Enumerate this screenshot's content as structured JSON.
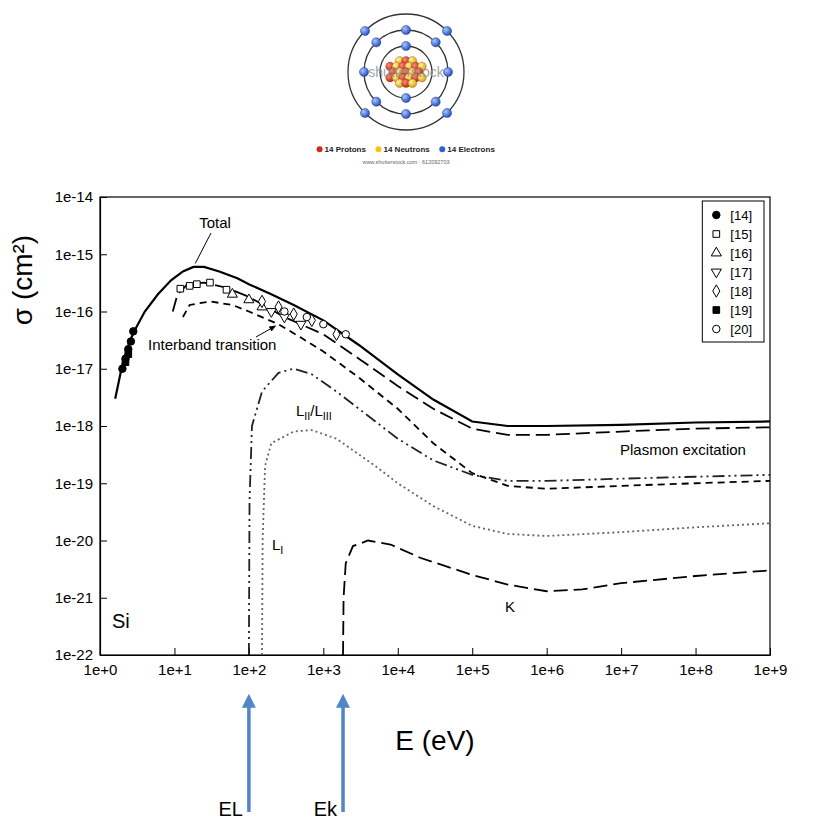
{
  "header_image": {
    "watermark": "shutterstock",
    "labels": [
      "14 Protons",
      "14 Neutrons",
      "14 Electrons"
    ],
    "credit": "www.shutterstock.com · 612092703",
    "shells": [
      2,
      8,
      4
    ]
  },
  "chart_data": {
    "type": "line",
    "xlabel": "E (eV)",
    "ylabel": "σ (cm²)",
    "log": true,
    "grid": false,
    "legend": "upper right",
    "xlim": [
      1,
      1000000000
    ],
    "ylim": [
      1e-22,
      1e-14
    ],
    "xticks": [
      {
        "value": 1,
        "label": "1e+0"
      },
      {
        "value": 10,
        "label": "1e+1"
      },
      {
        "value": 100,
        "label": "1e+2"
      },
      {
        "value": 1000,
        "label": "1e+3"
      },
      {
        "value": 10000,
        "label": "1e+4"
      },
      {
        "value": 100000,
        "label": "1e+5"
      },
      {
        "value": 1000000,
        "label": "1e+6"
      },
      {
        "value": 10000000,
        "label": "1e+7"
      },
      {
        "value": 100000000,
        "label": "1e+8"
      },
      {
        "value": 1000000000,
        "label": "1e+9"
      }
    ],
    "yticks": [
      {
        "value": 1e-22,
        "label": "1e-22"
      },
      {
        "value": 1e-21,
        "label": "1e-21"
      },
      {
        "value": 1e-20,
        "label": "1e-20"
      },
      {
        "value": 1e-19,
        "label": "1e-19"
      },
      {
        "value": 1e-18,
        "label": "1e-18"
      },
      {
        "value": 1e-17,
        "label": "1e-17"
      },
      {
        "value": 1e-16,
        "label": "1e-16"
      },
      {
        "value": 1e-15,
        "label": "1e-15"
      },
      {
        "value": 1e-14,
        "label": "1e-14"
      }
    ],
    "annotations": [
      {
        "text": "Si"
      },
      {
        "text": "EL",
        "x": 100
      },
      {
        "text": "Ek",
        "x": 1839
      }
    ],
    "series": [
      {
        "name": "Total",
        "type": "line",
        "line_style": "solid",
        "color": "#000000",
        "x": [
          1.6,
          2,
          2.5,
          3,
          4,
          6,
          9,
          13,
          18,
          25,
          40,
          70,
          100,
          200,
          400,
          1000,
          3000,
          10000.0,
          30000.0,
          100000.0,
          300000.0,
          1000000.0,
          10000000.0,
          100000000.0,
          1000000000.0
        ],
        "values": [
          3e-18,
          1.2e-17,
          3e-17,
          5e-17,
          1e-16,
          2e-16,
          3.5e-16,
          5e-16,
          6e-16,
          6e-16,
          5e-16,
          3.8e-16,
          3e-16,
          2e-16,
          1.3e-16,
          7e-17,
          2.6e-17,
          8e-18,
          2.9e-18,
          1.2e-18,
          1e-18,
          1e-18,
          1.05e-18,
          1.15e-18,
          1.2e-18
        ]
      },
      {
        "name": "Plasmon excitation",
        "type": "line",
        "line_style": "long-dashed",
        "color": "#000000",
        "x": [
          9.5,
          11,
          15,
          25,
          50,
          100,
          300,
          1000,
          3000,
          10000.0,
          30000.0,
          100000.0,
          300000.0,
          1000000.0,
          10000000.0,
          100000000.0,
          1000000000.0
        ],
        "values": [
          1e-16,
          2e-16,
          3e-16,
          3.2e-16,
          2.6e-16,
          1.8e-16,
          8e-17,
          4e-17,
          1.5e-17,
          5e-18,
          2e-18,
          9e-19,
          7e-19,
          7e-19,
          8e-19,
          9e-19,
          9.5e-19
        ]
      },
      {
        "name": "Interband transition",
        "type": "line",
        "line_style": "dashed",
        "color": "#000000",
        "x": [
          13,
          16,
          30,
          60,
          100,
          250,
          500,
          1000,
          3000,
          10000.0,
          30000.0,
          100000.0,
          300000.0,
          1000000.0,
          10000000.0,
          100000000.0,
          1000000000.0
        ],
        "values": [
          8e-17,
          1.3e-16,
          1.5e-16,
          1.3e-16,
          1e-16,
          6e-17,
          3.5e-17,
          2e-17,
          7e-18,
          2e-18,
          5e-19,
          1.5e-19,
          9e-20,
          8e-20,
          9e-20,
          1e-19,
          1.1e-19
        ]
      },
      {
        "name": "LII/LIII",
        "type": "line",
        "line_style": "dash-dot-dot",
        "color": "#222222",
        "x": [
          100,
          102,
          110,
          150,
          250,
          400,
          700,
          1500,
          5000,
          10000.0,
          30000.0,
          100000.0,
          300000.0,
          1000000.0,
          10000000.0,
          100000000.0,
          1000000000.0
        ],
        "values": [
          1e-22,
          5e-20,
          1e-18,
          4e-18,
          8.5e-18,
          1e-17,
          8e-18,
          4e-18,
          1.2e-18,
          6e-19,
          2.5e-19,
          1.4e-19,
          1.1e-19,
          1.1e-19,
          1.2e-19,
          1.3e-19,
          1.4e-19
        ]
      },
      {
        "name": "LI",
        "type": "line",
        "line_style": "dotted",
        "color": "#666666",
        "x": [
          150,
          153,
          165,
          200,
          400,
          700,
          1500,
          5000,
          10000.0,
          30000.0,
          100000.0,
          300000.0,
          1000000.0,
          10000000.0,
          100000000.0,
          1000000000.0
        ],
        "values": [
          1e-22,
          1e-20,
          2e-19,
          5e-19,
          8e-19,
          8.5e-19,
          6e-19,
          2e-19,
          1e-19,
          4e-20,
          1.8e-20,
          1.3e-20,
          1.2e-20,
          1.4e-20,
          1.7e-20,
          2e-20
        ]
      },
      {
        "name": "K",
        "type": "line",
        "line_style": "long-dashed",
        "color": "#000000",
        "x": [
          1839,
          1870,
          2000,
          2500,
          4000,
          8000,
          20000.0,
          100000.0,
          300000.0,
          1000000.0,
          3000000.0,
          10000000.0,
          100000000.0,
          1000000000.0
        ],
        "values": [
          1e-22,
          1e-21,
          4e-21,
          8e-21,
          1e-20,
          8.5e-21,
          5e-21,
          2.5e-21,
          1.7e-21,
          1.3e-21,
          1.4e-21,
          1.8e-21,
          2.4e-21,
          3e-21
        ]
      },
      {
        "name": "[14]",
        "type": "scatter",
        "marker": "filled-circle",
        "color": "#000000",
        "x": [
          2.0,
          2.2,
          2.4,
          2.6,
          2.8
        ],
        "values": [
          1e-17,
          1.5e-17,
          2.2e-17,
          3e-17,
          4.5e-17
        ]
      },
      {
        "name": "[15]",
        "type": "scatter",
        "marker": "open-square",
        "color": "#000000",
        "x": [
          12,
          16,
          20,
          30,
          50
        ],
        "values": [
          2.5e-16,
          2.8e-16,
          3e-16,
          3.2e-16,
          2.4e-16
        ]
      },
      {
        "name": "[16]",
        "type": "scatter",
        "marker": "open-triangle-up",
        "color": "#000000",
        "x": [
          60,
          100,
          150
        ],
        "values": [
          2e-16,
          1.6e-16,
          1.2e-16
        ]
      },
      {
        "name": "[17]",
        "type": "scatter",
        "marker": "open-triangle-down",
        "color": "#000000",
        "x": [
          200,
          300,
          500
        ],
        "values": [
          1e-16,
          8e-17,
          6e-17
        ]
      },
      {
        "name": "[18]",
        "type": "scatter",
        "marker": "open-diamond",
        "color": "#000000",
        "x": [
          150,
          250,
          400,
          700,
          1500
        ],
        "values": [
          1.5e-16,
          1.2e-16,
          9e-17,
          7e-17,
          4e-17
        ]
      },
      {
        "name": "[19]",
        "type": "scatter",
        "marker": "filled-square",
        "color": "#000000",
        "x": [
          2.2,
          2.4
        ],
        "values": [
          1.3e-17,
          1.8e-17
        ]
      },
      {
        "name": "[20]",
        "type": "scatter",
        "marker": "open-circle",
        "color": "#000000",
        "x": [
          300,
          600,
          1000,
          2000
        ],
        "values": [
          1e-16,
          8e-17,
          6e-17,
          4e-17
        ]
      }
    ]
  }
}
